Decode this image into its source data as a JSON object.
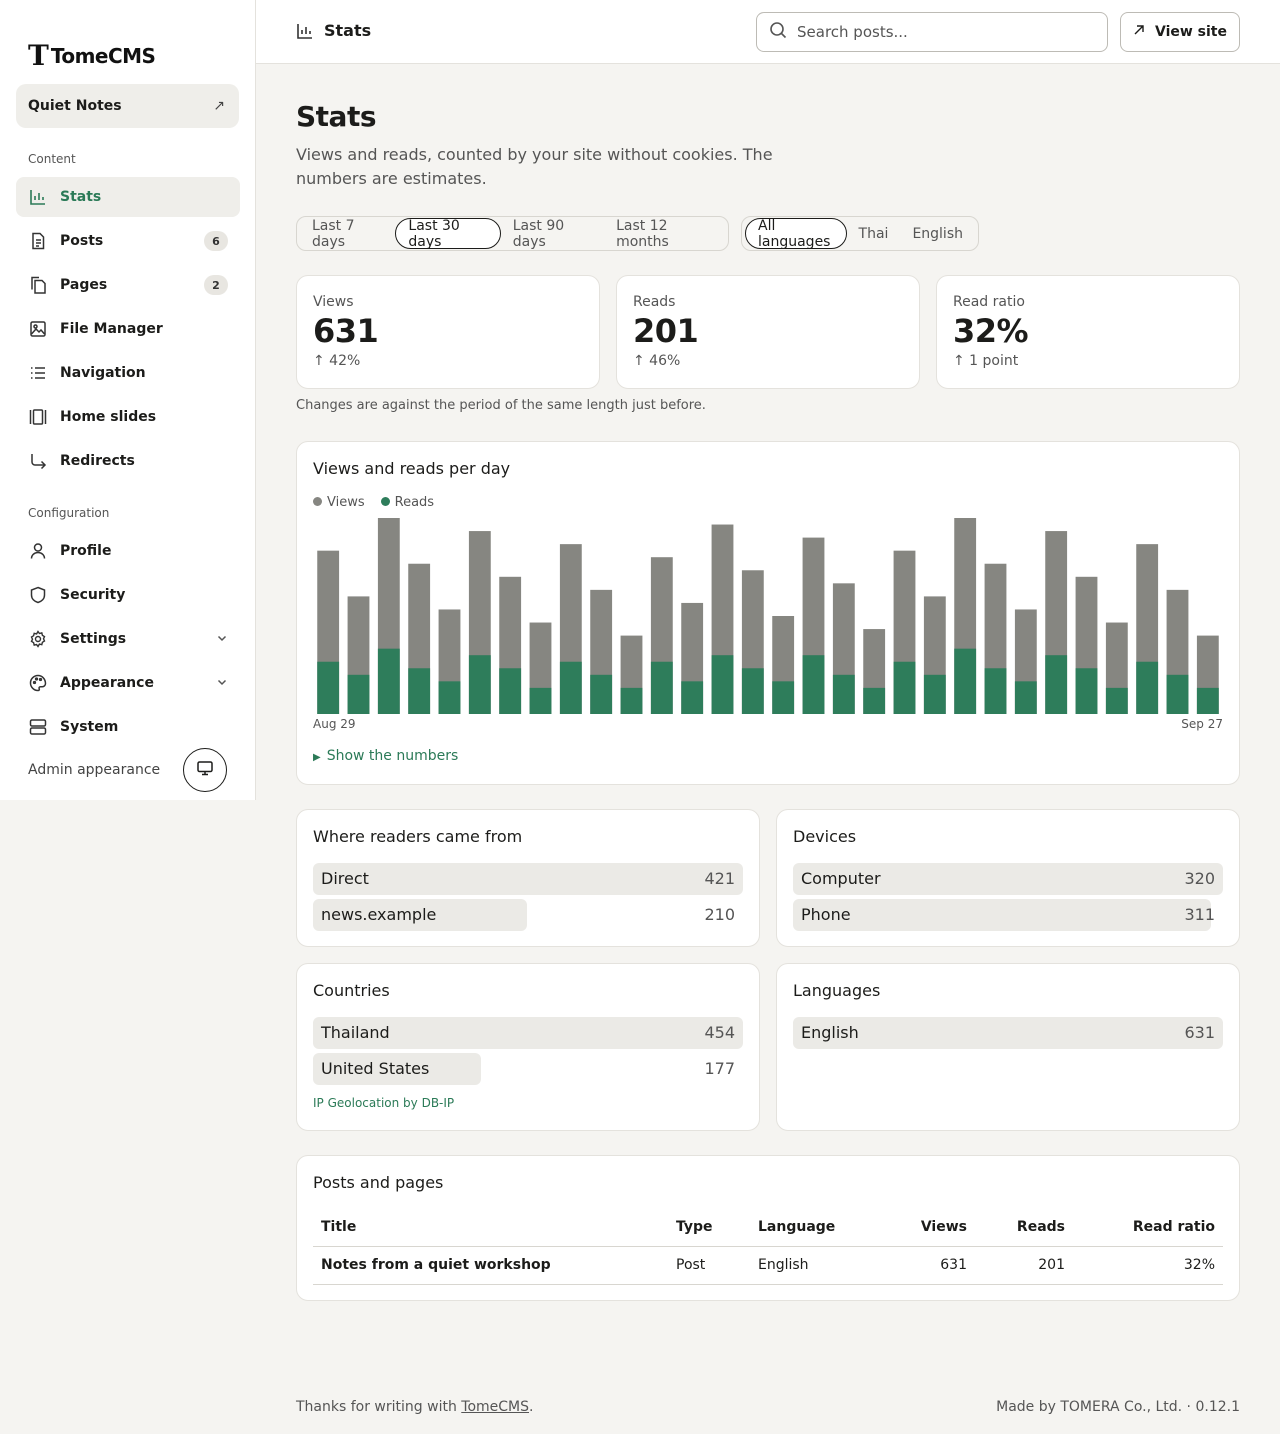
{
  "brand": {
    "mark": "T",
    "name": "TomeCMS"
  },
  "site": {
    "name": "Quiet Notes"
  },
  "sidebar": {
    "content_label": "Content",
    "config_label": "Configuration",
    "items": [
      {
        "label": "Stats",
        "icon": "bar-chart-icon",
        "active": true
      },
      {
        "label": "Posts",
        "icon": "document-icon",
        "badge": "6"
      },
      {
        "label": "Pages",
        "icon": "pages-icon",
        "badge": "2"
      },
      {
        "label": "File Manager",
        "icon": "image-icon"
      },
      {
        "label": "Navigation",
        "icon": "list-icon"
      },
      {
        "label": "Home slides",
        "icon": "slides-icon"
      },
      {
        "label": "Redirects",
        "icon": "redirect-icon"
      }
    ],
    "config_items": [
      {
        "label": "Profile",
        "icon": "user-icon"
      },
      {
        "label": "Security",
        "icon": "shield-icon"
      },
      {
        "label": "Settings",
        "icon": "gear-icon"
      },
      {
        "label": "Appearance",
        "icon": "palette-icon"
      },
      {
        "label": "System",
        "icon": "server-icon"
      }
    ],
    "admin_appearance": "Admin appearance"
  },
  "header": {
    "title": "Stats",
    "search_placeholder": "Search posts...",
    "view_site": "View site"
  },
  "page": {
    "title": "Stats",
    "description": "Views and reads, counted by your site without cookies. The numbers are estimates."
  },
  "ranges": [
    "Last 7 days",
    "Last 30 days",
    "Last 90 days",
    "Last 12 months"
  ],
  "languages_filter": [
    "All languages",
    "Thai",
    "English"
  ],
  "kpis": [
    {
      "label": "Views",
      "value": "631",
      "delta": "↑ 42%"
    },
    {
      "label": "Reads",
      "value": "201",
      "delta": "↑ 46%"
    },
    {
      "label": "Read ratio",
      "value": "32%",
      "delta": "↑ 1 point"
    }
  ],
  "changes_note": "Changes are against the period of the same length just before.",
  "chart": {
    "title": "Views and reads per day",
    "legend": [
      "Views",
      "Reads"
    ],
    "start_label": "Aug 29",
    "end_label": "Sep 27",
    "show_numbers": "Show the numbers"
  },
  "colors": {
    "views": "#868681",
    "reads": "#2e7d5b",
    "accent": "#2b7a57"
  },
  "chart_data": {
    "type": "bar",
    "title": "Views and reads per day",
    "x_start": "Aug 29",
    "x_end": "Sep 27",
    "series": [
      {
        "name": "Views",
        "values": [
          25,
          18,
          30,
          23,
          16,
          28,
          21,
          14,
          26,
          19,
          12,
          24,
          17,
          29,
          22,
          15,
          27,
          20,
          13,
          25,
          18,
          30,
          23,
          16,
          28,
          21,
          14,
          26,
          19,
          12
        ]
      },
      {
        "name": "Reads",
        "values": [
          8,
          6,
          10,
          7,
          5,
          9,
          7,
          4,
          8,
          6,
          4,
          8,
          5,
          9,
          7,
          5,
          9,
          6,
          4,
          8,
          6,
          10,
          7,
          5,
          9,
          7,
          4,
          8,
          6,
          4
        ]
      }
    ],
    "stacked": "overlay",
    "legend_position": "top-left"
  },
  "referrers": {
    "title": "Where readers came from",
    "rows": [
      {
        "label": "Direct",
        "value": 421
      },
      {
        "label": "news.example",
        "value": 210
      }
    ]
  },
  "devices": {
    "title": "Devices",
    "rows": [
      {
        "label": "Computer",
        "value": 320
      },
      {
        "label": "Phone",
        "value": 311
      }
    ]
  },
  "countries": {
    "title": "Countries",
    "rows": [
      {
        "label": "Thailand",
        "value": 454
      },
      {
        "label": "United States",
        "value": 177
      }
    ],
    "credit": "IP Geolocation by DB-IP"
  },
  "languages": {
    "title": "Languages",
    "rows": [
      {
        "label": "English",
        "value": 631
      }
    ]
  },
  "posts": {
    "title": "Posts and pages",
    "headers": [
      "Title",
      "Type",
      "Language",
      "Views",
      "Reads",
      "Read ratio"
    ],
    "rows": [
      [
        "Notes from a quiet workshop",
        "Post",
        "English",
        "631",
        "201",
        "32%"
      ]
    ]
  },
  "footer": {
    "left_prefix": "Thanks for writing with ",
    "left_link": "TomeCMS",
    "left_suffix": ".",
    "right": "Made by TOMERA Co., Ltd. · 0.12.1"
  }
}
